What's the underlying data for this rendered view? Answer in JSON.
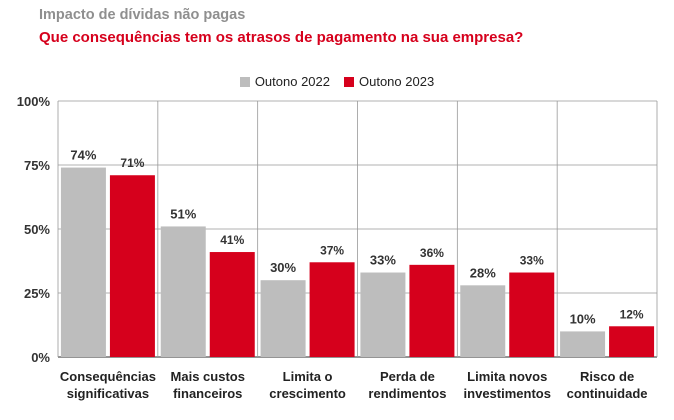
{
  "chart_data": {
    "type": "bar",
    "title": "Impacto de dívidas não pagas",
    "subtitle": "Que consequências tem os atrasos de pagamento na sua empresa?",
    "categories": [
      [
        "Consequências",
        "significativas"
      ],
      [
        "Mais custos",
        "financeiros"
      ],
      [
        "Limita o",
        "crescimento"
      ],
      [
        "Perda de",
        "rendimentos"
      ],
      [
        "Limita novos",
        "investimentos"
      ],
      [
        "Risco de",
        "continuidade"
      ]
    ],
    "series": [
      {
        "name": "Outono 2022",
        "color": "#bdbdbd",
        "values": [
          74,
          51,
          30,
          33,
          28,
          10
        ]
      },
      {
        "name": "Outono 2023",
        "color": "#d6001c",
        "values": [
          71,
          41,
          37,
          36,
          33,
          12
        ]
      }
    ],
    "yticks": [
      "0%",
      "25%",
      "50%",
      "75%",
      "100%"
    ],
    "ylim": [
      0,
      100
    ],
    "grid": true,
    "legend_position": "top-center",
    "value_suffix": "%"
  }
}
